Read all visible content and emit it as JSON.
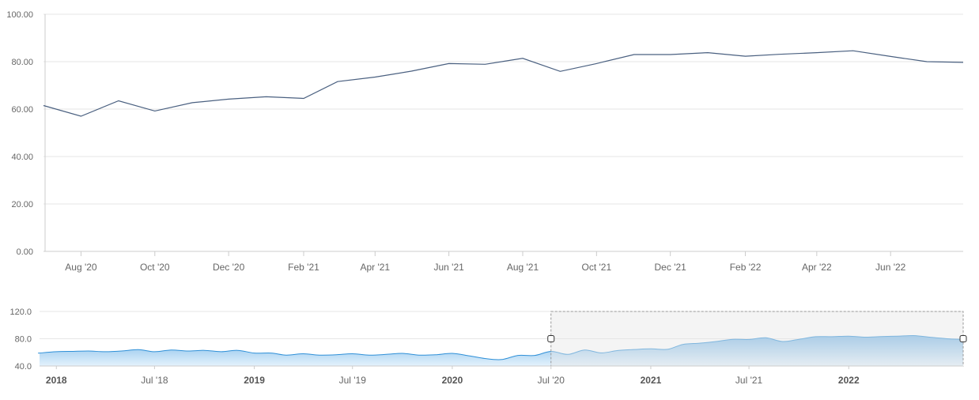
{
  "colors": {
    "main_line": "#4a6080",
    "navigator_line": "#2f90d8",
    "navigator_fill_top": "#7ab8e8",
    "navigator_fill_bottom": "#e4f2fc",
    "selection_fill": "#e6e6e6",
    "selection_border": "#999999",
    "grid": "#e6e6e6",
    "axis": "#cccccc"
  },
  "chart_data": [
    {
      "name": "main",
      "type": "line",
      "title": "",
      "xlabel": "",
      "ylabel": "",
      "ylim": [
        0,
        100
      ],
      "yticks": [
        "0.00",
        "20.00",
        "40.00",
        "60.00",
        "80.00",
        "100.00"
      ],
      "xrange": [
        "2020-07-01",
        "2022-07-31"
      ],
      "xticks": [
        {
          "date": "2020-08-01",
          "label": "Aug '20"
        },
        {
          "date": "2020-10-01",
          "label": "Oct '20"
        },
        {
          "date": "2020-12-01",
          "label": "Dec '20"
        },
        {
          "date": "2021-02-01",
          "label": "Feb '21"
        },
        {
          "date": "2021-04-01",
          "label": "Apr '21"
        },
        {
          "date": "2021-06-01",
          "label": "Jun '21"
        },
        {
          "date": "2021-08-01",
          "label": "Aug '21"
        },
        {
          "date": "2021-10-01",
          "label": "Oct '21"
        },
        {
          "date": "2021-12-01",
          "label": "Dec '21"
        },
        {
          "date": "2022-02-01",
          "label": "Feb '22"
        },
        {
          "date": "2022-04-01",
          "label": "Apr '22"
        },
        {
          "date": "2022-06-01",
          "label": "Jun '22"
        }
      ],
      "grid": true,
      "series": [
        {
          "x": [
            "2020-07-01",
            "2020-08-01",
            "2020-09-01",
            "2020-10-01",
            "2020-11-01",
            "2020-12-01",
            "2021-01-01",
            "2021-02-01",
            "2021-03-01",
            "2021-04-01",
            "2021-05-01",
            "2021-06-01",
            "2021-07-01",
            "2021-08-01",
            "2021-09-01",
            "2021-10-01",
            "2021-11-01",
            "2021-12-01",
            "2022-01-01",
            "2022-02-01",
            "2022-03-01",
            "2022-04-01",
            "2022-05-01",
            "2022-06-01",
            "2022-07-01"
          ],
          "values": [
            61.5,
            57.0,
            63.5,
            59.2,
            62.7,
            64.2,
            65.2,
            64.5,
            71.6,
            73.5,
            76.0,
            79.2,
            78.9,
            81.4,
            75.9,
            79.2,
            83.0,
            83.0,
            83.8,
            82.3,
            83.1,
            83.8,
            84.6,
            82.2,
            80.0
          ]
        }
      ]
    },
    {
      "name": "navigator",
      "type": "area",
      "title": "",
      "ylim": [
        40,
        120
      ],
      "yticks": [
        "40.0",
        "80.0",
        "120.0"
      ],
      "xrange": [
        "2017-12-01",
        "2022-07-31"
      ],
      "xticks": [
        {
          "date": "2018-01-01",
          "label": "2018",
          "bold": true
        },
        {
          "date": "2018-07-01",
          "label": "Jul '18",
          "bold": false
        },
        {
          "date": "2019-01-01",
          "label": "2019",
          "bold": true
        },
        {
          "date": "2019-07-01",
          "label": "Jul '19",
          "bold": false
        },
        {
          "date": "2020-01-01",
          "label": "2020",
          "bold": true
        },
        {
          "date": "2020-07-01",
          "label": "Jul '20",
          "bold": false
        },
        {
          "date": "2021-01-01",
          "label": "2021",
          "bold": true
        },
        {
          "date": "2021-07-01",
          "label": "Jul '21",
          "bold": false
        },
        {
          "date": "2022-01-01",
          "label": "2022",
          "bold": true
        }
      ],
      "selection": [
        "2020-07-01",
        "2022-07-31"
      ],
      "series": [
        {
          "x": [
            "2017-12-01",
            "2018-01-01",
            "2018-02-01",
            "2018-03-01",
            "2018-04-01",
            "2018-05-01",
            "2018-06-01",
            "2018-07-01",
            "2018-08-01",
            "2018-09-01",
            "2018-10-01",
            "2018-11-01",
            "2018-12-01",
            "2019-01-01",
            "2019-02-01",
            "2019-03-01",
            "2019-04-01",
            "2019-05-01",
            "2019-06-01",
            "2019-07-01",
            "2019-08-01",
            "2019-09-01",
            "2019-10-01",
            "2019-11-01",
            "2019-12-01",
            "2020-01-01",
            "2020-02-01",
            "2020-03-01",
            "2020-04-01",
            "2020-05-01",
            "2020-06-01",
            "2020-07-01",
            "2020-08-01",
            "2020-09-01",
            "2020-10-01",
            "2020-11-01",
            "2020-12-01",
            "2021-01-01",
            "2021-02-01",
            "2021-03-01",
            "2021-04-01",
            "2021-05-01",
            "2021-06-01",
            "2021-07-01",
            "2021-08-01",
            "2021-09-01",
            "2021-10-01",
            "2021-11-01",
            "2021-12-01",
            "2022-01-01",
            "2022-02-01",
            "2022-03-01",
            "2022-04-01",
            "2022-05-01",
            "2022-06-01",
            "2022-07-01"
          ],
          "values": [
            59.0,
            61.0,
            61.5,
            62.0,
            61.0,
            62.0,
            64.0,
            61.0,
            63.5,
            62.0,
            63.0,
            61.0,
            63.0,
            59.0,
            59.0,
            56.0,
            58.0,
            56.0,
            56.5,
            58.0,
            56.0,
            57.0,
            58.5,
            56.0,
            56.5,
            58.5,
            55.0,
            51.0,
            49.5,
            55.5,
            55.5,
            61.5,
            57.0,
            63.5,
            59.2,
            62.7,
            64.2,
            65.2,
            64.5,
            71.6,
            73.5,
            76.0,
            79.2,
            78.9,
            81.4,
            75.9,
            79.2,
            83.0,
            83.0,
            83.8,
            82.3,
            83.1,
            83.8,
            84.6,
            82.2,
            80.0
          ]
        }
      ]
    }
  ]
}
